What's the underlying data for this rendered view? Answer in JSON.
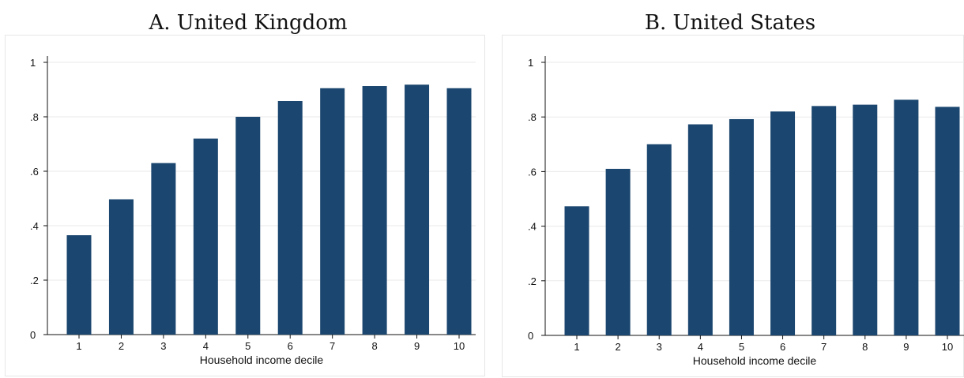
{
  "chart_data": [
    {
      "type": "bar",
      "title": "A. United Kingdom",
      "xlabel": "Household income decile",
      "ylabel": "",
      "categories": [
        "1",
        "2",
        "3",
        "4",
        "5",
        "6",
        "7",
        "8",
        "9",
        "10"
      ],
      "values": [
        0.365,
        0.497,
        0.63,
        0.72,
        0.8,
        0.858,
        0.905,
        0.913,
        0.918,
        0.905
      ],
      "ylim": [
        0,
        1
      ],
      "yticks": [
        0,
        0.2,
        0.4,
        0.6,
        0.8,
        1
      ],
      "ytick_labels": [
        "0",
        ".2",
        ".4",
        ".6",
        ".8",
        "1"
      ],
      "grid": true,
      "bar_color": "#1b466f"
    },
    {
      "type": "bar",
      "title": "B. United States",
      "xlabel": "Household income decile",
      "ylabel": "",
      "categories": [
        "1",
        "2",
        "3",
        "4",
        "5",
        "6",
        "7",
        "8",
        "9",
        "10"
      ],
      "values": [
        0.473,
        0.61,
        0.7,
        0.773,
        0.792,
        0.82,
        0.84,
        0.845,
        0.863,
        0.837
      ],
      "ylim": [
        0,
        1
      ],
      "yticks": [
        0,
        0.2,
        0.4,
        0.6,
        0.8,
        1
      ],
      "ytick_labels": [
        "0",
        ".2",
        ".4",
        ".6",
        ".8",
        "1"
      ],
      "grid": true,
      "bar_color": "#1b466f"
    }
  ]
}
